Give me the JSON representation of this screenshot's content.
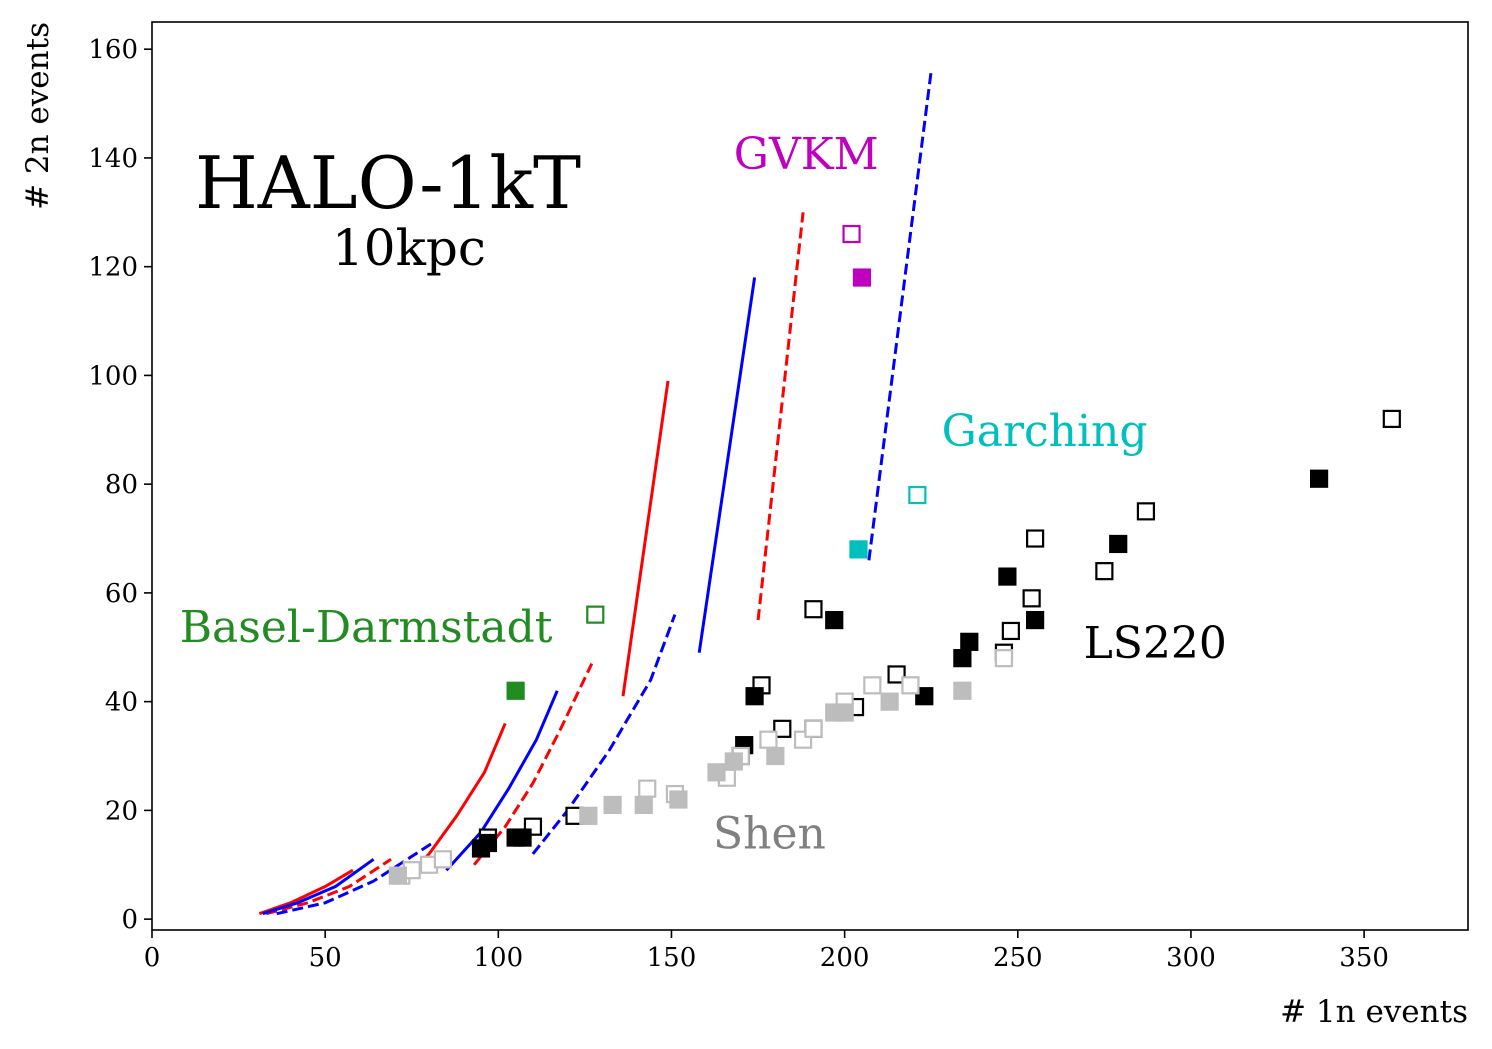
{
  "chart_data": {
    "type": "scatter",
    "title": "HALO-1kT",
    "subtitle": "10kpc",
    "xlabel": "# 1n events",
    "ylabel": "# 2n events",
    "xlim": [
      0,
      380
    ],
    "ylim": [
      -2,
      165
    ],
    "xticks": [
      0,
      50,
      100,
      150,
      200,
      250,
      300,
      350
    ],
    "yticks": [
      0,
      20,
      40,
      60,
      80,
      100,
      120,
      140,
      160
    ],
    "grid": false,
    "labels": [
      {
        "text": "GVKM",
        "x": 168,
        "y": 138,
        "color": "#bf00bf"
      },
      {
        "text": "Garching",
        "x": 228,
        "y": 87,
        "color": "#00bfbf"
      },
      {
        "text": "Basel-Darmstadt",
        "x": 8,
        "y": 51,
        "color": "#228b22"
      },
      {
        "text": "LS220",
        "x": 269,
        "y": 48,
        "color": "#000000"
      },
      {
        "text": "Shen",
        "x": 162,
        "y": 13,
        "color": "#808080"
      }
    ],
    "series": [
      {
        "kind": "line",
        "color": "#ff0000",
        "dash": false,
        "points": [
          [
            31,
            1
          ],
          [
            40,
            3
          ],
          [
            50,
            6
          ],
          [
            58,
            9
          ]
        ]
      },
      {
        "kind": "line",
        "color": "#ff0000",
        "dash": false,
        "points": [
          [
            74,
            8
          ],
          [
            80,
            12
          ],
          [
            88,
            19
          ],
          [
            96,
            27
          ],
          [
            102,
            36
          ]
        ]
      },
      {
        "kind": "line",
        "color": "#ff0000",
        "dash": false,
        "points": [
          [
            136,
            41
          ],
          [
            149,
            99
          ]
        ]
      },
      {
        "kind": "line",
        "color": "#ff0000",
        "dash": true,
        "points": [
          [
            33,
            1
          ],
          [
            45,
            3
          ],
          [
            57,
            6
          ],
          [
            69,
            11
          ]
        ]
      },
      {
        "kind": "line",
        "color": "#ff0000",
        "dash": true,
        "points": [
          [
            93,
            10
          ],
          [
            102,
            17
          ],
          [
            110,
            25
          ],
          [
            118,
            35
          ],
          [
            127,
            47
          ]
        ]
      },
      {
        "kind": "line",
        "color": "#ff0000",
        "dash": true,
        "points": [
          [
            175,
            55
          ],
          [
            188,
            130
          ]
        ]
      },
      {
        "kind": "line",
        "color": "#0000ff",
        "dash": false,
        "points": [
          [
            32,
            1
          ],
          [
            42,
            3
          ],
          [
            53,
            6
          ],
          [
            64,
            11
          ]
        ]
      },
      {
        "kind": "line",
        "color": "#0000ff",
        "dash": false,
        "points": [
          [
            85,
            9
          ],
          [
            95,
            16
          ],
          [
            103,
            24
          ],
          [
            111,
            33
          ],
          [
            117,
            42
          ]
        ]
      },
      {
        "kind": "line",
        "color": "#0000ff",
        "dash": false,
        "points": [
          [
            158,
            49
          ],
          [
            174,
            118
          ]
        ]
      },
      {
        "kind": "line",
        "color": "#0000ff",
        "dash": true,
        "points": [
          [
            36,
            1
          ],
          [
            50,
            3
          ],
          [
            64,
            7
          ],
          [
            81,
            14
          ]
        ]
      },
      {
        "kind": "line",
        "color": "#0000ff",
        "dash": true,
        "points": [
          [
            110,
            12
          ],
          [
            120,
            20
          ],
          [
            132,
            31
          ],
          [
            144,
            44
          ],
          [
            151,
            56
          ]
        ]
      },
      {
        "kind": "line",
        "color": "#0000ff",
        "dash": true,
        "points": [
          [
            207,
            66
          ],
          [
            225,
            156
          ]
        ]
      },
      {
        "kind": "marker",
        "color": "#bf00bf",
        "filled": false,
        "points": [
          [
            202,
            126
          ]
        ]
      },
      {
        "kind": "marker",
        "color": "#bf00bf",
        "filled": true,
        "points": [
          [
            205,
            118
          ]
        ]
      },
      {
        "kind": "marker",
        "color": "#00bfbf",
        "filled": false,
        "points": [
          [
            221,
            78
          ]
        ]
      },
      {
        "kind": "marker",
        "color": "#00bfbf",
        "filled": true,
        "points": [
          [
            204,
            68
          ]
        ]
      },
      {
        "kind": "marker",
        "color": "#228b22",
        "filled": false,
        "points": [
          [
            128,
            56
          ]
        ]
      },
      {
        "kind": "marker",
        "color": "#228b22",
        "filled": true,
        "points": [
          [
            105,
            42
          ]
        ]
      },
      {
        "kind": "marker",
        "color": "#000000",
        "filled": false,
        "points": [
          [
            358,
            92
          ],
          [
            287,
            75
          ],
          [
            275,
            64
          ],
          [
            255,
            70
          ],
          [
            254,
            59
          ],
          [
            248,
            53
          ],
          [
            246,
            49
          ],
          [
            215,
            45
          ],
          [
            203,
            39
          ],
          [
            191,
            57
          ],
          [
            182,
            35
          ],
          [
            176,
            43
          ],
          [
            170,
            30
          ],
          [
            110,
            17
          ],
          [
            97,
            15
          ],
          [
            122,
            19
          ]
        ]
      },
      {
        "kind": "marker",
        "color": "#000000",
        "filled": true,
        "points": [
          [
            337,
            81
          ],
          [
            279,
            69
          ],
          [
            247,
            63
          ],
          [
            255,
            55
          ],
          [
            236,
            51
          ],
          [
            234,
            48
          ],
          [
            223,
            41
          ],
          [
            197,
            55
          ],
          [
            191,
            35
          ],
          [
            174,
            41
          ],
          [
            171,
            32
          ],
          [
            105,
            15
          ],
          [
            107,
            15
          ],
          [
            97,
            14
          ],
          [
            95,
            13
          ]
        ]
      },
      {
        "kind": "marker",
        "color": "#bdbdbd",
        "filled": false,
        "points": [
          [
            72,
            8
          ],
          [
            75,
            9
          ],
          [
            80,
            10
          ],
          [
            84,
            11
          ],
          [
            143,
            24
          ],
          [
            151,
            23
          ],
          [
            166,
            26
          ],
          [
            170,
            30
          ],
          [
            178,
            33
          ],
          [
            188,
            33
          ],
          [
            191,
            35
          ],
          [
            200,
            40
          ],
          [
            208,
            43
          ],
          [
            219,
            43
          ],
          [
            246,
            48
          ]
        ]
      },
      {
        "kind": "marker",
        "color": "#bdbdbd",
        "filled": true,
        "points": [
          [
            71,
            8
          ],
          [
            126,
            19
          ],
          [
            133,
            21
          ],
          [
            142,
            21
          ],
          [
            152,
            22
          ],
          [
            163,
            27
          ],
          [
            168,
            29
          ],
          [
            180,
            30
          ],
          [
            197,
            38
          ],
          [
            200,
            38
          ],
          [
            213,
            40
          ],
          [
            234,
            42
          ]
        ]
      }
    ]
  }
}
